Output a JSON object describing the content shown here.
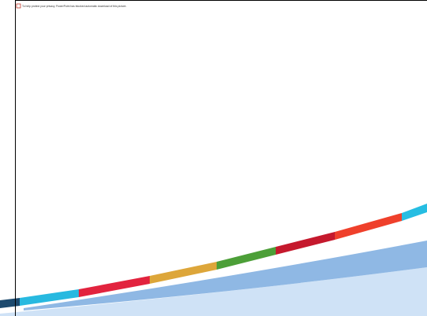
{
  "notice": {
    "text": "To help protect your privacy, PowerPoint has blocked automatic download of this picture."
  }
}
